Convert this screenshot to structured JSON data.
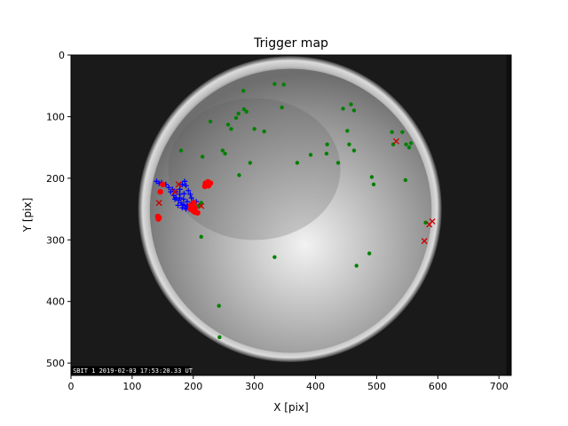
{
  "chart_data": {
    "type": "scatter",
    "title": "Trigger map",
    "xlabel": "X [pix]",
    "ylabel": "Y [pix]",
    "xlim": [
      0,
      720
    ],
    "ylim": [
      520,
      0
    ],
    "xticks": [
      0,
      100,
      200,
      300,
      400,
      500,
      600,
      700
    ],
    "yticks": [
      0,
      100,
      200,
      300,
      400,
      500
    ],
    "background_image": "all-sky camera frame (fisheye lens, dark surround, bright circular field)",
    "timestamp_text": "SBIT 1 2019-02-03 17:53:20.33 UT",
    "series": [
      {
        "marker": "dot",
        "color": "#008000",
        "points": [
          [
            282,
            58
          ],
          [
            333,
            47
          ],
          [
            348,
            48
          ],
          [
            345,
            85
          ],
          [
            270,
            102
          ],
          [
            274,
            95
          ],
          [
            283,
            88
          ],
          [
            287,
            92
          ],
          [
            257,
            113
          ],
          [
            262,
            120
          ],
          [
            228,
            108
          ],
          [
            300,
            120
          ],
          [
            316,
            124
          ],
          [
            293,
            175
          ],
          [
            275,
            195
          ],
          [
            248,
            155
          ],
          [
            252,
            160
          ],
          [
            215,
            165
          ],
          [
            180,
            155
          ],
          [
            370,
            175
          ],
          [
            392,
            162
          ],
          [
            418,
            160
          ],
          [
            419,
            145
          ],
          [
            445,
            87
          ],
          [
            458,
            80
          ],
          [
            463,
            90
          ],
          [
            452,
            123
          ],
          [
            463,
            155
          ],
          [
            455,
            145
          ],
          [
            437,
            175
          ],
          [
            525,
            125
          ],
          [
            527,
            145
          ],
          [
            542,
            125
          ],
          [
            548,
            145
          ],
          [
            556,
            143
          ],
          [
            553,
            150
          ],
          [
            547,
            203
          ],
          [
            492,
            198
          ],
          [
            495,
            210
          ],
          [
            488,
            322
          ],
          [
            467,
            342
          ],
          [
            333,
            328
          ],
          [
            213,
            295
          ],
          [
            242,
            407
          ],
          [
            243,
            458
          ],
          [
            208,
            245
          ],
          [
            213,
            240
          ],
          [
            580,
            272
          ]
        ]
      },
      {
        "marker": "plus",
        "color": "#0000ff",
        "points": [
          [
            140,
            205
          ],
          [
            144,
            208
          ],
          [
            148,
            207
          ],
          [
            155,
            210
          ],
          [
            160,
            215
          ],
          [
            163,
            222
          ],
          [
            168,
            228
          ],
          [
            172,
            232
          ],
          [
            176,
            236
          ],
          [
            180,
            240
          ],
          [
            183,
            243
          ],
          [
            186,
            244
          ],
          [
            190,
            246
          ],
          [
            178,
            218
          ],
          [
            182,
            210
          ],
          [
            186,
            205
          ],
          [
            188,
            212
          ],
          [
            192,
            220
          ],
          [
            195,
            226
          ],
          [
            197,
            232
          ],
          [
            200,
            238
          ],
          [
            185,
            225
          ],
          [
            178,
            226
          ],
          [
            170,
            234
          ],
          [
            175,
            244
          ],
          [
            182,
            248
          ],
          [
            188,
            250
          ],
          [
            193,
            250
          ],
          [
            197,
            246
          ],
          [
            205,
            238
          ],
          [
            190,
            238
          ],
          [
            195,
            243
          ],
          [
            178,
            232
          ],
          [
            184,
            234
          ],
          [
            172,
            222
          ],
          [
            166,
            218
          ]
        ]
      },
      {
        "marker": "dot",
        "color": "#ff0000",
        "points": [
          [
            142,
            262
          ],
          [
            143,
            266
          ],
          [
            144,
            264
          ],
          [
            196,
            250
          ],
          [
            200,
            253
          ],
          [
            203,
            255
          ],
          [
            207,
            256
          ],
          [
            203,
            248
          ],
          [
            196,
            244
          ],
          [
            201,
            240
          ],
          [
            224,
            206
          ],
          [
            228,
            208
          ],
          [
            222,
            210
          ],
          [
            219,
            213
          ],
          [
            225,
            212
          ],
          [
            220,
            208
          ],
          [
            150,
            210
          ],
          [
            146,
            222
          ]
        ]
      },
      {
        "marker": "x",
        "color": "#cc0000",
        "points": [
          [
            170,
            222
          ],
          [
            144,
            240
          ],
          [
            176,
            210
          ],
          [
            213,
            245
          ],
          [
            532,
            140
          ],
          [
            591,
            270
          ],
          [
            586,
            275
          ],
          [
            578,
            302
          ]
        ]
      }
    ]
  }
}
